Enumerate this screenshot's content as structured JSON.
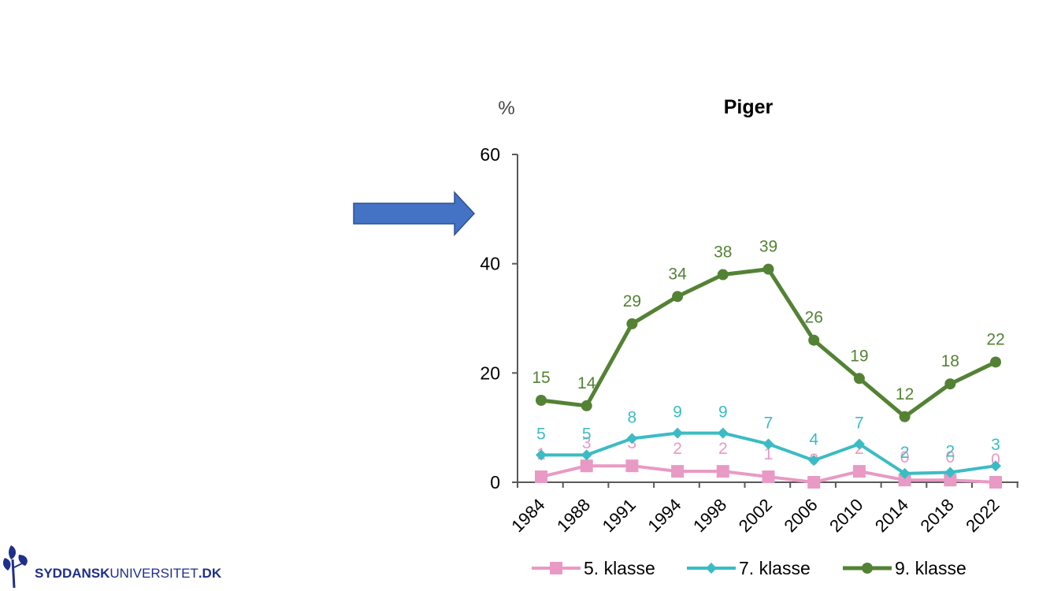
{
  "chart_data": {
    "type": "line",
    "title": "Piger",
    "ylabel": "%",
    "xlabel": "",
    "ylim": [
      0,
      60
    ],
    "yticks": [
      0,
      20,
      40,
      60
    ],
    "categories": [
      "1984",
      "1988",
      "1991",
      "1994",
      "1998",
      "2002",
      "2006",
      "2010",
      "2014",
      "2018",
      "2022"
    ],
    "series": [
      {
        "name": "5. klasse",
        "color": "#e89ac4",
        "marker": "square",
        "values": [
          1,
          3,
          3,
          2,
          2,
          1,
          0,
          2,
          0.4,
          0.4,
          0
        ],
        "labels": [
          "1",
          "3",
          "3",
          "2",
          "2",
          "1",
          "0",
          "2",
          "0",
          "0",
          "0"
        ]
      },
      {
        "name": "7. klasse",
        "color": "#3bbcc4",
        "marker": "diamond",
        "values": [
          5,
          5,
          8,
          9,
          9,
          7,
          4,
          7,
          1.6,
          1.8,
          3
        ],
        "labels": [
          "5",
          "5",
          "8",
          "9",
          "9",
          "7",
          "4",
          "7",
          "2",
          "2",
          "3"
        ]
      },
      {
        "name": "9. klasse",
        "color": "#548235",
        "marker": "circle",
        "values": [
          15,
          14,
          29,
          34,
          38,
          39,
          26,
          19,
          12,
          18,
          22
        ],
        "labels": [
          "15",
          "14",
          "29",
          "34",
          "38",
          "39",
          "26",
          "19",
          "12",
          "18",
          "22"
        ]
      }
    ],
    "legend": "bottom"
  },
  "arrow": {
    "color": "#4472c4",
    "border": "#2f528f"
  },
  "logo": {
    "bold": "SYDDANSK",
    "thin": "UNIVERSITET",
    "tld": ".DK",
    "color": "#1f2f8c"
  }
}
